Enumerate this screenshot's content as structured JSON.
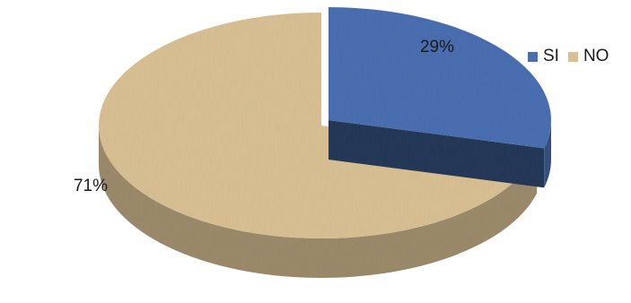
{
  "chart_data": {
    "type": "pie",
    "style": "3d-exploded",
    "categories": [
      "SI",
      "NO"
    ],
    "values": [
      29,
      71
    ],
    "data_labels": [
      "29%",
      "71%"
    ],
    "colors": [
      "#4a6fb1",
      "#d9c194"
    ],
    "legend": {
      "position": "top-right",
      "entries": [
        "SI",
        "NO"
      ]
    }
  }
}
